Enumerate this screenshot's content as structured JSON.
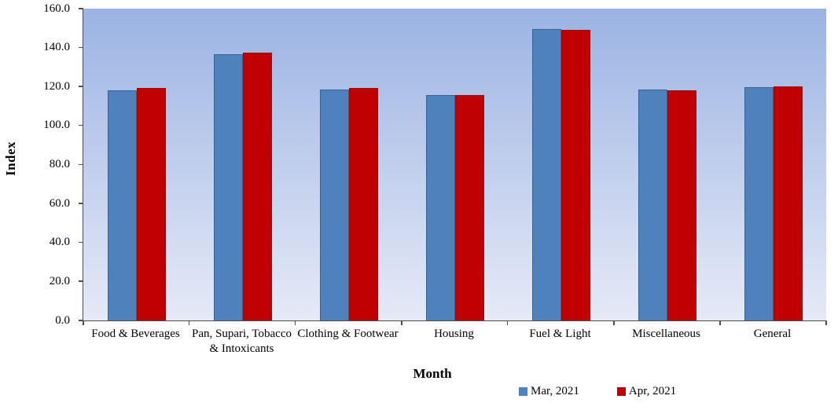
{
  "chart_data": {
    "type": "bar",
    "title": "",
    "xlabel": "Month",
    "ylabel": "Index",
    "ylim": [
      0,
      160
    ],
    "ytick_step": 20,
    "yticks": [
      "160.0",
      "140.0",
      "120.0",
      "100.0",
      "80.0",
      "60.0",
      "40.0",
      "20.0",
      "0.0"
    ],
    "categories": [
      "Food & Beverages",
      "Pan, Supari, Tobacco & Intoxicants",
      "Clothing & Footwear",
      "Housing",
      "Fuel & Light",
      "Miscellaneous",
      "General"
    ],
    "series": [
      {
        "name": "Mar, 2021",
        "color": "#4F81BD",
        "border_color": "#3A6191",
        "values": [
          118.2,
          136.7,
          118.6,
          115.5,
          149.4,
          118.3,
          119.6
        ]
      },
      {
        "name": "Apr, 2021",
        "color": "#C00000",
        "border_color": "#8E1111",
        "values": [
          119.4,
          137.6,
          119.1,
          115.5,
          149.0,
          118.2,
          120.3
        ]
      }
    ],
    "legend_position": "bottom-right",
    "grid": false,
    "plot_background_gradient_top": "#9BB3E3",
    "plot_background_gradient_bottom": "#E6EAF7",
    "axis_color": "#4d4d4d"
  }
}
